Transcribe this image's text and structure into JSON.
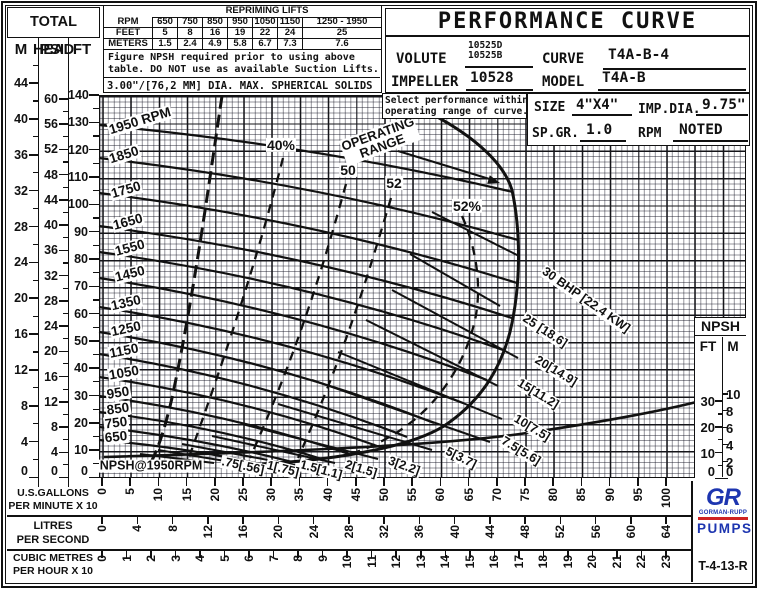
{
  "header": {
    "total_head": "TOTAL HEAD",
    "title": "PERFORMANCE CURVE",
    "repriming": {
      "title": "REPRIMING LIFTS",
      "row_labels": [
        "RPM",
        "FEET",
        "METERS"
      ],
      "rpm": [
        "650",
        "750",
        "850",
        "950",
        "1050",
        "1150",
        "1250 - 1950"
      ],
      "feet": [
        "5",
        "8",
        "16",
        "19",
        "22",
        "24",
        "25"
      ],
      "meters": [
        "1.5",
        "2.4",
        "4.9",
        "5.8",
        "6.7",
        "7.3",
        "7.6"
      ]
    },
    "note1": "Figure NPSH required prior to using above",
    "note2": "table. DO NOT use as available Suction Lifts.",
    "note3": "3.00\"/[76,2 MM] DIA. MAX. SPHERICAL SOLIDS",
    "select_note1": "Select performance within",
    "select_note2": "operating range of curve.",
    "fields": {
      "volute_label": "VOLUTE",
      "volute_value1": "10525D",
      "volute_value2": "10525B",
      "curve_label": "CURVE",
      "curve_value": "T4A-B-4",
      "impeller_label": "IMPELLER",
      "impeller_value": "10528",
      "model_label": "MODEL",
      "model_value": "T4A-B",
      "size_label": "SIZE",
      "size_value": "4\"X4\"",
      "imp_dia_label": "IMP.DIA.",
      "imp_dia_value": "9.75\"",
      "sp_gr_label": "SP.GR.",
      "sp_gr_value": "1.0",
      "rpm_label": "RPM",
      "rpm_value": "NOTED"
    }
  },
  "axes": {
    "m_label": "M",
    "psi_label": "PSI",
    "ft_label": "FT",
    "m_ticks": [
      44,
      40,
      36,
      32,
      28,
      24,
      20,
      16,
      12,
      8,
      4,
      0
    ],
    "psi_ticks": [
      60,
      56,
      52,
      48,
      44,
      40,
      36,
      32,
      28,
      24,
      20,
      16,
      12,
      8,
      4,
      0
    ],
    "ft_ticks": [
      140,
      130,
      120,
      110,
      100,
      90,
      80,
      70,
      60,
      50,
      40,
      30,
      20,
      10,
      0
    ],
    "gpm": {
      "line1": "U.S.GALLONS",
      "line2": "PER MINUTE X 10",
      "ticks": [
        0,
        5,
        10,
        15,
        20,
        25,
        30,
        35,
        40,
        45,
        50,
        55,
        60,
        65,
        70,
        75,
        80,
        85,
        90,
        95,
        100
      ]
    },
    "lps": {
      "line1": "LITRES",
      "line2": "PER SECOND",
      "ticks": [
        0,
        4,
        8,
        12,
        16,
        20,
        24,
        28,
        32,
        36,
        40,
        44,
        48,
        52,
        56,
        60,
        64
      ]
    },
    "m3h": {
      "line1": "CUBIC METRES",
      "line2": "PER HOUR X 10",
      "ticks": [
        0,
        1,
        2,
        3,
        4,
        5,
        6,
        7,
        8,
        9,
        10,
        11,
        12,
        13,
        14,
        15,
        16,
        17,
        18,
        19,
        20,
        21,
        22,
        23
      ]
    },
    "npsh": {
      "title": "NPSH",
      "ft_label": "FT",
      "m_label": "M",
      "ft_ticks": [
        30,
        20,
        10,
        0
      ],
      "m_ticks": [
        10,
        8,
        6,
        4,
        2,
        0
      ]
    }
  },
  "chart_data": {
    "type": "line",
    "title": "PERFORMANCE CURVE",
    "x_axes": [
      {
        "label": "U.S.GALLONS PER MINUTE X 10",
        "range": [
          0,
          100
        ],
        "tick_step": 5
      },
      {
        "label": "LITRES PER SECOND",
        "range": [
          0,
          64
        ],
        "tick_step": 4
      },
      {
        "label": "CUBIC METRES PER HOUR X 10",
        "range": [
          0,
          23
        ],
        "tick_step": 1
      }
    ],
    "y_axes": [
      {
        "label": "TOTAL HEAD M",
        "range": [
          0,
          44
        ]
      },
      {
        "label": "TOTAL HEAD PSI",
        "range": [
          0,
          60
        ]
      },
      {
        "label": "TOTAL HEAD FT",
        "range": [
          0,
          140
        ]
      },
      {
        "label": "NPSH FT",
        "range": [
          0,
          30
        ]
      },
      {
        "label": "NPSH M",
        "range": [
          0,
          10
        ]
      }
    ],
    "grid": "fine graph paper, heavy line each 5 GPMx10 and each 10 FT",
    "operating_range_label": [
      "OPERATING",
      "RANGE"
    ],
    "rpm_curves": [
      {
        "label": "1950 RPM",
        "rpm": 1950,
        "shutoff_head_ft": 129,
        "max_flow_gpm_x10": 73,
        "head_at_max_flow_ft": 104
      },
      {
        "label": "1850",
        "rpm": 1850,
        "shutoff_head_ft": 117,
        "max_flow_gpm_x10": 74,
        "head_at_max_flow_ft": 87
      },
      {
        "label": "1750",
        "rpm": 1750,
        "shutoff_head_ft": 104,
        "max_flow_gpm_x10": 74,
        "head_at_max_flow_ft": 71
      },
      {
        "label": "1650",
        "rpm": 1650,
        "shutoff_head_ft": 92,
        "max_flow_gpm_x10": 73,
        "head_at_max_flow_ft": 58
      },
      {
        "label": "1550",
        "rpm": 1550,
        "shutoff_head_ft": 82,
        "max_flow_gpm_x10": 71,
        "head_at_max_flow_ft": 47
      },
      {
        "label": "1450",
        "rpm": 1450,
        "shutoff_head_ft": 73,
        "max_flow_gpm_x10": 68,
        "head_at_max_flow_ft": 36
      },
      {
        "label": "1350",
        "rpm": 1350,
        "shutoff_head_ft": 62,
        "max_flow_gpm_x10": 64,
        "head_at_max_flow_ft": 27
      },
      {
        "label": "1250",
        "rpm": 1250,
        "shutoff_head_ft": 53,
        "max_flow_gpm_x10": 59,
        "head_at_max_flow_ft": 20
      },
      {
        "label": "1150",
        "rpm": 1150,
        "shutoff_head_ft": 45,
        "max_flow_gpm_x10": 54,
        "head_at_max_flow_ft": 15
      },
      {
        "label": "1050",
        "rpm": 1050,
        "shutoff_head_ft": 37,
        "max_flow_gpm_x10": 49,
        "head_at_max_flow_ft": 11
      },
      {
        "label": "950",
        "rpm": 950,
        "shutoff_head_ft": 30,
        "max_flow_gpm_x10": 44,
        "head_at_max_flow_ft": 8
      },
      {
        "label": "850",
        "rpm": 850,
        "shutoff_head_ft": 24,
        "max_flow_gpm_x10": 39,
        "head_at_max_flow_ft": 7
      },
      {
        "label": "750",
        "rpm": 750,
        "shutoff_head_ft": 18.5,
        "max_flow_gpm_x10": 34,
        "head_at_max_flow_ft": 6
      },
      {
        "label": "650",
        "rpm": 650,
        "shutoff_head_ft": 13.5,
        "max_flow_gpm_x10": 28,
        "head_at_max_flow_ft": 5
      }
    ],
    "efficiency_contours": [
      {
        "label": "40%",
        "percent": 40
      },
      {
        "label": "50",
        "percent": 50
      },
      {
        "label": "52",
        "percent": 52
      },
      {
        "label": "52%",
        "percent": 52
      }
    ],
    "bhp_lines": [
      {
        "label": "30 BHP [22.4 KW]",
        "hp": 30,
        "kw": 22.4
      },
      {
        "label": "25 [18.6]",
        "hp": 25,
        "kw": 18.6
      },
      {
        "label": "20[14.9]",
        "hp": 20,
        "kw": 14.9
      },
      {
        "label": "15[11.2]",
        "hp": 15,
        "kw": 11.2
      },
      {
        "label": "10[7.5]",
        "hp": 10,
        "kw": 7.5
      },
      {
        "label": "7.5[5.6]",
        "hp": 7.5,
        "kw": 5.6
      },
      {
        "label": "5[3.7]",
        "hp": 5,
        "kw": 3.7
      },
      {
        "label": "3[2.2]",
        "hp": 3,
        "kw": 2.2
      },
      {
        "label": "2[1.5]",
        "hp": 2,
        "kw": 1.5
      },
      {
        "label": "1.5[1.1]",
        "hp": 1.5,
        "kw": 1.1
      },
      {
        "label": "1[.75]",
        "hp": 1,
        "kw": 0.75
      },
      {
        "label": ".75[.56]",
        "hp": 0.75,
        "kw": 0.56
      }
    ],
    "npsh_curve": {
      "label": "NPSH@1950RPM",
      "points": [
        {
          "gpm_x10": 0,
          "npsh_ft": 7.5
        },
        {
          "gpm_x10": 40,
          "npsh_ft": 12
        },
        {
          "gpm_x10": 75,
          "npsh_ft": 17
        },
        {
          "gpm_x10": 108,
          "npsh_ft": 30
        }
      ]
    }
  },
  "footer": {
    "doc_number": "T-4-13-R",
    "logo": {
      "gr": "GR",
      "name": "GORMAN-RUPP",
      "pumps": "PUMPS"
    }
  }
}
